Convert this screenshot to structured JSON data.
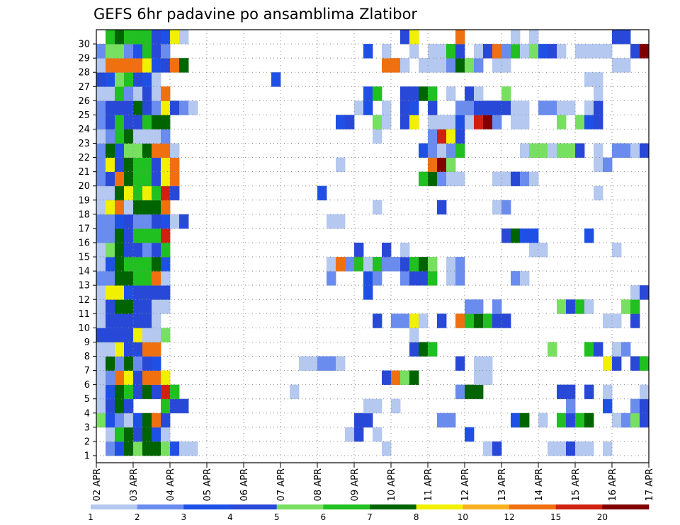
{
  "chart_data": {
    "type": "heatmap",
    "title": "GEFS 6hr padavine po ansamblima Zlatibor",
    "xlabel": "",
    "ylabel": "",
    "x_tick_labels": [
      "02 APR",
      "03 APR",
      "04 APR",
      "05 APR",
      "06 APR",
      "07 APR",
      "08 APR",
      "09 APR",
      "10 APR",
      "11 APR",
      "12 APR",
      "13 APR",
      "14 APR",
      "15 APR",
      "16 APR",
      "17 APR"
    ],
    "x_steps_per_day": 4,
    "x_num_steps": 60,
    "y_tick_labels": [
      "1",
      "2",
      "3",
      "4",
      "5",
      "6",
      "7",
      "8",
      "9",
      "10",
      "11",
      "12",
      "13",
      "14",
      "15",
      "16",
      "17",
      "18",
      "19",
      "20",
      "21",
      "22",
      "23",
      "24",
      "25",
      "26",
      "27",
      "28",
      "29",
      "30"
    ],
    "members": 30,
    "legend": {
      "labels": [
        "1",
        "2",
        "3",
        "4",
        "5",
        "6",
        "7",
        "8",
        "10",
        "12",
        "15",
        "20"
      ],
      "colors": [
        "#b4c8f0",
        "#6a8cee",
        "#1e50e6",
        "#2848d8",
        "#78e060",
        "#20c020",
        "#006400",
        "#f0f000",
        "#f8b020",
        "#f07010",
        "#d02010",
        "#800000"
      ]
    },
    "cell_legend_index": {
      "1": {
        "1": 1,
        "2": 2,
        "3": 6,
        "4": 4,
        "5": 6,
        "6": 6,
        "7": 4,
        "8": 2,
        "9": 0,
        "10": 0,
        "31": 0,
        "42": 0,
        "43": 3,
        "49": 0,
        "50": 0,
        "51": 3,
        "52": 0,
        "53": 0,
        "55": 0
      },
      "2": {
        "1": 0,
        "2": 5,
        "3": 6,
        "4": 3,
        "5": 6,
        "6": 2,
        "7": 0,
        "27": 0,
        "28": 3,
        "30": 0,
        "40": 2
      },
      "3": {
        "0": 4,
        "1": 2,
        "2": 1,
        "3": 0,
        "4": 2,
        "5": 6,
        "6": 9,
        "7": 3,
        "28": 3,
        "29": 3,
        "37": 1,
        "38": 1,
        "45": 2,
        "46": 6,
        "48": 0,
        "50": 5,
        "51": 3,
        "52": 5,
        "53": 6,
        "56": 0,
        "57": 1,
        "58": 4,
        "59": 3
      },
      "4": {
        "0": 0,
        "1": 3,
        "2": 6,
        "3": 3,
        "7": 5,
        "8": 3,
        "9": 3,
        "29": 0,
        "30": 0,
        "32": 0,
        "51": 1,
        "55": 2,
        "58": 1,
        "59": 3
      },
      "5": {
        "0": 0,
        "1": 2,
        "2": 6,
        "3": 5,
        "4": 3,
        "5": 6,
        "6": 3,
        "7": 10,
        "8": 5,
        "21": 0,
        "39": 1,
        "40": 6,
        "41": 6,
        "50": 3,
        "51": 3,
        "53": 3,
        "55": 0,
        "59": 0
      },
      "6": {
        "0": 0,
        "1": 1,
        "2": 9,
        "3": 7,
        "4": 3,
        "5": 9,
        "6": 9,
        "7": 7,
        "31": 3,
        "32": 9,
        "33": 4,
        "34": 6,
        "41": 0,
        "42": 0
      },
      "7": {
        "0": 0,
        "1": 6,
        "2": 1,
        "3": 6,
        "4": 1,
        "5": 3,
        "6": 2,
        "22": 0,
        "23": 0,
        "24": 1,
        "25": 1,
        "26": 0,
        "39": 3,
        "41": 0,
        "42": 0,
        "55": 7,
        "56": 3,
        "58": 3,
        "59": 5
      },
      "8": {
        "0": 0,
        "1": 0,
        "2": 7,
        "3": 3,
        "4": 3,
        "5": 9,
        "6": 9,
        "34": 3,
        "35": 6,
        "36": 5,
        "49": 4,
        "53": 5,
        "54": 3,
        "56": 0,
        "57": 1
      },
      "9": {
        "0": 3,
        "1": 3,
        "2": 3,
        "3": 3,
        "4": 7,
        "5": 0,
        "6": 0,
        "7": 4,
        "34": 0
      },
      "10": {
        "0": 0,
        "1": 3,
        "2": 3,
        "3": 3,
        "4": 3,
        "5": 3,
        "6": 0,
        "30": 3,
        "32": 1,
        "33": 1,
        "34": 7,
        "35": 0,
        "37": 3,
        "39": 9,
        "40": 5,
        "41": 6,
        "42": 5,
        "43": 3,
        "44": 3,
        "55": 0,
        "56": 0,
        "58": 3
      },
      "11": {
        "0": 0,
        "1": 3,
        "2": 6,
        "3": 6,
        "4": 3,
        "5": 3,
        "6": 0,
        "7": 0,
        "40": 1,
        "41": 1,
        "43": 1,
        "50": 4,
        "51": 3,
        "52": 5,
        "53": 0,
        "57": 4,
        "58": 5
      },
      "12": {
        "0": 0,
        "1": 7,
        "2": 7,
        "3": 2,
        "4": 3,
        "5": 3,
        "6": 3,
        "7": 3,
        "29": 2,
        "58": 0,
        "59": 3
      },
      "13": {
        "0": 1,
        "1": 1,
        "2": 6,
        "3": 6,
        "4": 5,
        "5": 5,
        "6": 9,
        "7": 0,
        "25": 1,
        "29": 2,
        "30": 1,
        "33": 1,
        "34": 3,
        "35": 3,
        "36": 5,
        "38": 0,
        "39": 1,
        "45": 1,
        "46": 0
      },
      "14": {
        "0": 0,
        "1": 2,
        "2": 6,
        "3": 5,
        "4": 5,
        "5": 5,
        "6": 6,
        "7": 2,
        "25": 0,
        "26": 9,
        "27": 1,
        "28": 5,
        "29": 0,
        "30": 5,
        "31": 1,
        "32": 1,
        "33": 3,
        "34": 5,
        "35": 6,
        "36": 4,
        "38": 0,
        "39": 1
      },
      "15": {
        "0": 0,
        "1": 4,
        "2": 6,
        "3": 3,
        "4": 3,
        "5": 1,
        "6": 3,
        "7": 5,
        "28": 3,
        "31": 3,
        "33": 0,
        "47": 0,
        "48": 0,
        "56": 0
      },
      "16": {
        "0": 1,
        "1": 1,
        "2": 6,
        "3": 3,
        "4": 5,
        "5": 5,
        "6": 5,
        "7": 10,
        "44": 3,
        "45": 6,
        "46": 2,
        "47": 2,
        "53": 2
      },
      "17": {
        "0": 1,
        "1": 1,
        "2": 2,
        "3": 3,
        "4": 1,
        "5": 1,
        "6": 3,
        "7": 2,
        "8": 0,
        "9": 3,
        "25": 0,
        "26": 0
      },
      "18": {
        "0": 0,
        "1": 7,
        "2": 9,
        "3": 0,
        "4": 6,
        "5": 6,
        "6": 6,
        "7": 9,
        "30": 0,
        "37": 3,
        "43": 0,
        "44": 1
      },
      "19": {
        "0": 0,
        "1": 0,
        "2": 6,
        "3": 7,
        "4": 5,
        "5": 7,
        "6": 5,
        "7": 10,
        "8": 3,
        "24": 2,
        "54": 0
      },
      "20": {
        "0": 1,
        "1": 3,
        "2": 9,
        "3": 6,
        "4": 5,
        "5": 5,
        "6": 3,
        "7": 7,
        "8": 9,
        "35": 5,
        "36": 6,
        "37": 1,
        "38": 0,
        "39": 0,
        "43": 0,
        "44": 0,
        "45": 3,
        "46": 1,
        "47": 0
      },
      "21": {
        "0": 1,
        "1": 7,
        "2": 3,
        "3": 6,
        "4": 5,
        "5": 5,
        "6": 3,
        "7": 7,
        "8": 9,
        "26": 0,
        "36": 9,
        "37": 11,
        "38": 4,
        "54": 0,
        "55": 1
      },
      "22": {
        "0": 1,
        "1": 6,
        "2": 2,
        "3": 4,
        "4": 4,
        "5": 6,
        "6": 9,
        "7": 9,
        "8": 0,
        "35": 2,
        "36": 1,
        "37": 0,
        "38": 1,
        "39": 5,
        "46": 0,
        "47": 4,
        "48": 4,
        "49": 0,
        "50": 4,
        "51": 4,
        "52": 3,
        "54": 0,
        "56": 1,
        "57": 1,
        "58": 0,
        "59": 3
      },
      "23": {
        "0": 0,
        "1": 1,
        "2": 5,
        "3": 6,
        "4": 0,
        "5": 0,
        "6": 0,
        "7": 1,
        "30": 0,
        "36": 1,
        "37": 10,
        "38": 7,
        "39": 3
      },
      "24": {
        "0": 1,
        "1": 3,
        "2": 5,
        "3": 3,
        "4": 3,
        "5": 5,
        "6": 6,
        "7": 6,
        "26": 2,
        "27": 3,
        "30": 4,
        "31": 0,
        "33": 3,
        "34": 7,
        "36": 0,
        "37": 0,
        "38": 0,
        "39": 2,
        "40": 0,
        "41": 10,
        "42": 11,
        "43": 1,
        "45": 0,
        "46": 0,
        "50": 4,
        "52": 4,
        "53": 2,
        "54": 3
      },
      "25": {
        "0": 1,
        "1": 3,
        "2": 3,
        "3": 3,
        "4": 6,
        "5": 3,
        "6": 1,
        "7": 7,
        "8": 3,
        "9": 1,
        "10": 0,
        "28": 0,
        "29": 2,
        "31": 0,
        "33": 3,
        "34": 2,
        "36": 3,
        "39": 1,
        "40": 1,
        "41": 3,
        "42": 3,
        "43": 3,
        "44": 3,
        "45": 0,
        "46": 0,
        "48": 1,
        "49": 1,
        "50": 0,
        "51": 0,
        "53": 0,
        "54": 3
      },
      "26": {
        "0": 0,
        "1": 0,
        "2": 5,
        "3": 1,
        "4": 0,
        "5": 3,
        "6": 0,
        "7": 9,
        "29": 2,
        "30": 5,
        "33": 3,
        "34": 3,
        "35": 6,
        "36": 5,
        "38": 0,
        "40": 3,
        "41": 0,
        "44": 4,
        "54": 0
      },
      "27": {
        "0": 3,
        "1": 2,
        "2": 4,
        "3": 5,
        "4": 3,
        "5": 2,
        "6": 0,
        "19": 2,
        "53": 0,
        "54": 0
      },
      "28": {
        "0": 0,
        "1": 9,
        "2": 9,
        "3": 9,
        "4": 9,
        "5": 7,
        "6": 2,
        "7": 3,
        "8": 9,
        "9": 6,
        "31": 9,
        "32": 9,
        "33": 0,
        "35": 0,
        "36": 0,
        "37": 0,
        "38": 1,
        "39": 6,
        "40": 4,
        "41": 1,
        "43": 0,
        "44": 0,
        "56": 0,
        "57": 0
      },
      "29": {
        "0": 1,
        "1": 4,
        "2": 4,
        "3": 1,
        "4": 2,
        "5": 5,
        "6": 3,
        "7": 1,
        "29": 2,
        "31": 0,
        "34": 0,
        "36": 0,
        "37": 0,
        "38": 5,
        "39": 3,
        "41": 0,
        "42": 3,
        "43": 9,
        "44": 1,
        "45": 5,
        "46": 0,
        "47": 4,
        "48": 2,
        "49": 3,
        "50": 0,
        "52": 0,
        "53": 0,
        "54": 0,
        "55": 0,
        "58": 3,
        "59": 11
      },
      "30": {
        "1": 5,
        "2": 6,
        "3": 5,
        "4": 5,
        "5": 5,
        "6": 3,
        "7": 2,
        "8": 7,
        "9": 0,
        "33": 3,
        "34": 7,
        "39": 9,
        "45": 0,
        "47": 0,
        "56": 3,
        "57": 3
      }
    }
  }
}
